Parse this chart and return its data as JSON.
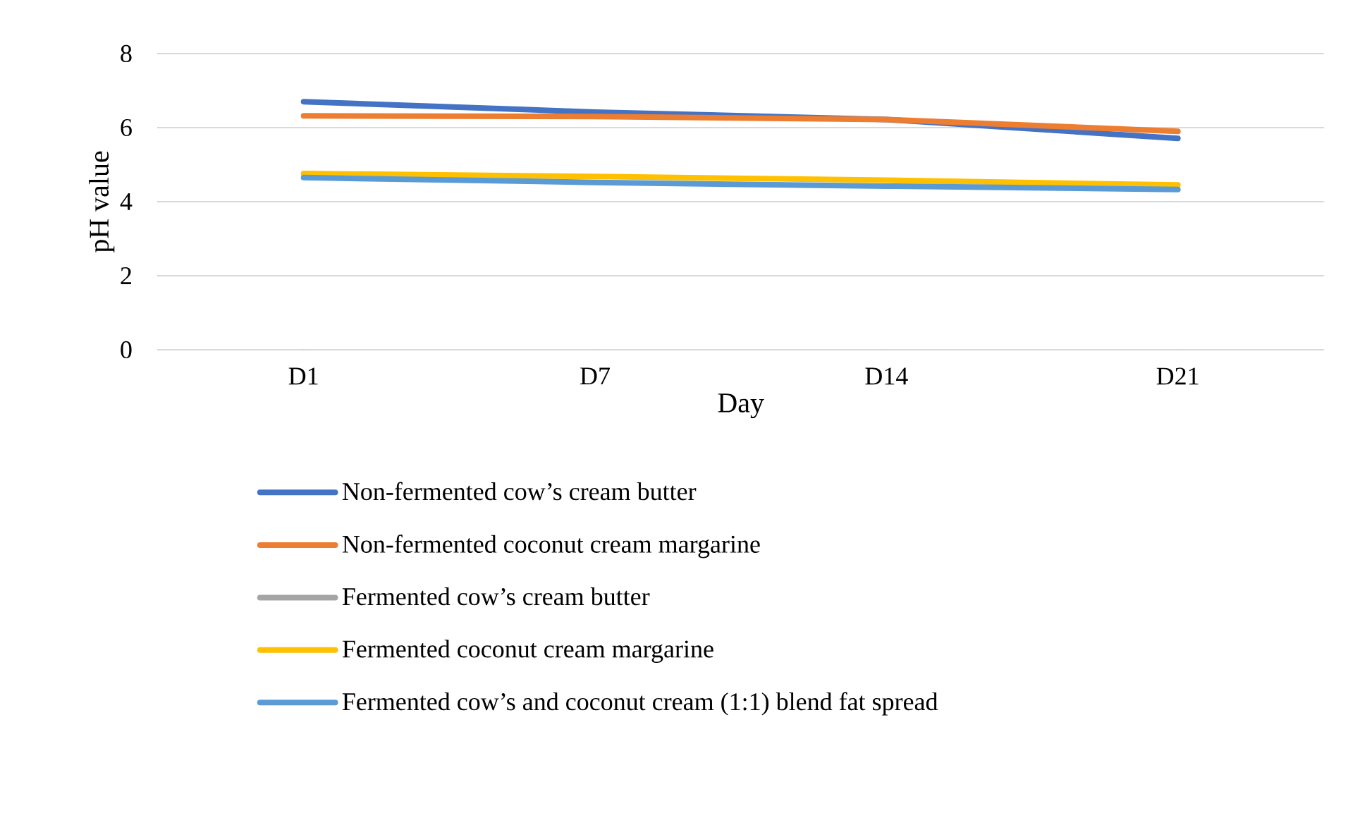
{
  "chart_data": {
    "type": "line",
    "xlabel": "Day",
    "ylabel": "pH value",
    "categories": [
      "D1",
      "D7",
      "D14",
      "D21"
    ],
    "series": [
      {
        "name": "Non-fermented cow’s cream butter",
        "color": "#4472c4",
        "values": [
          6.7,
          6.42,
          6.22,
          5.71
        ]
      },
      {
        "name": "Non-fermented coconut cream margarine",
        "color": "#ed7d31",
        "values": [
          6.32,
          6.3,
          6.22,
          5.9
        ]
      },
      {
        "name": "Fermented cow’s cream butter",
        "color": "#a5a5a5",
        "values": [
          null,
          null,
          null,
          null
        ]
      },
      {
        "name": "Fermented coconut cream margarine",
        "color": "#ffc000",
        "values": [
          4.76,
          4.68,
          4.58,
          4.45
        ]
      },
      {
        "name": "Fermented cow’s and coconut cream (1:1) blend fat spread",
        "color": "#5b9bd5",
        "values": [
          4.65,
          4.52,
          4.42,
          4.33
        ]
      }
    ],
    "ylim": [
      0,
      8
    ],
    "yticks": [
      0,
      2,
      4,
      6,
      8
    ],
    "grid": "y",
    "legend": "bottom",
    "marker": "none",
    "line_style": "solid"
  }
}
